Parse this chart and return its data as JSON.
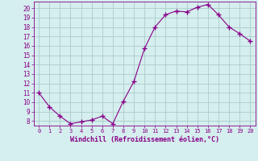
{
  "x": [
    0,
    1,
    2,
    3,
    4,
    5,
    6,
    7,
    8,
    9,
    10,
    11,
    12,
    13,
    14,
    15,
    16,
    17,
    18,
    19,
    20
  ],
  "y": [
    11.0,
    9.5,
    8.5,
    7.7,
    7.9,
    8.1,
    8.5,
    7.7,
    10.1,
    12.2,
    15.7,
    18.0,
    19.3,
    19.7,
    19.6,
    20.1,
    20.4,
    19.3,
    18.0,
    17.3,
    16.5
  ],
  "line_color": "#880088",
  "marker": "+",
  "marker_size": 4,
  "background_color": "#d5eeee",
  "grid_color": "#aacccc",
  "xlabel": "Windchill (Refroidissement éolien,°C)",
  "xlabel_color": "#880088",
  "tick_color": "#880088",
  "xlim": [
    -0.5,
    20.5
  ],
  "ylim": [
    7.5,
    20.7
  ],
  "yticks": [
    8,
    9,
    10,
    11,
    12,
    13,
    14,
    15,
    16,
    17,
    18,
    19,
    20
  ],
  "xticks": [
    0,
    1,
    2,
    3,
    4,
    5,
    6,
    7,
    8,
    9,
    10,
    11,
    12,
    13,
    14,
    15,
    16,
    17,
    18,
    19,
    20
  ]
}
